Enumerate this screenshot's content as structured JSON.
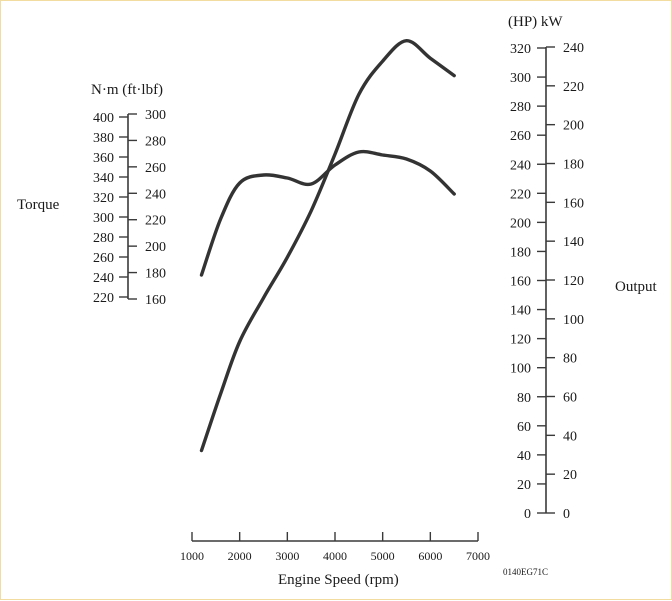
{
  "chart_data": {
    "type": "line",
    "title": "",
    "xlabel": "Engine Speed (rpm)",
    "x_ticks": [
      1000,
      2000,
      3000,
      4000,
      5000,
      6000,
      7000
    ],
    "xlim": [
      1000,
      7000
    ],
    "grid": false,
    "legend": "none",
    "torque_axis": {
      "label": "Torque",
      "nm_unit_label": "N·m (ft·lbf)",
      "nm_ticks": [
        220,
        240,
        260,
        280,
        300,
        320,
        340,
        360,
        380,
        400
      ],
      "ftlbf_ticks": [
        160,
        180,
        200,
        220,
        240,
        260,
        280,
        300
      ]
    },
    "output_axis": {
      "label": "Output",
      "unit_label": "(HP) kW",
      "hp_ticks": [
        0,
        20,
        40,
        60,
        80,
        100,
        120,
        140,
        160,
        180,
        200,
        220,
        240,
        260,
        280,
        300,
        320
      ],
      "kw_ticks": [
        0,
        20,
        40,
        60,
        80,
        100,
        120,
        140,
        160,
        180,
        200,
        220,
        240
      ]
    },
    "series": [
      {
        "axis": "torque_nm",
        "x": [
          1200,
          1600,
          2000,
          2500,
          3000,
          3500,
          4000,
          4500,
          5000,
          5500,
          6000,
          6500
        ],
        "values": [
          242,
          298,
          334,
          342,
          339,
          333,
          352,
          365,
          362,
          358,
          346,
          323
        ]
      },
      {
        "axis": "output_hp",
        "x": [
          1200,
          1600,
          2000,
          2500,
          3000,
          3500,
          4000,
          4500,
          5000,
          5500,
          6000,
          6500
        ],
        "values": [
          43,
          82,
          118,
          148,
          176,
          208,
          247,
          288,
          311,
          325,
          313,
          301
        ]
      }
    ],
    "annotation": "0140EG71C"
  }
}
